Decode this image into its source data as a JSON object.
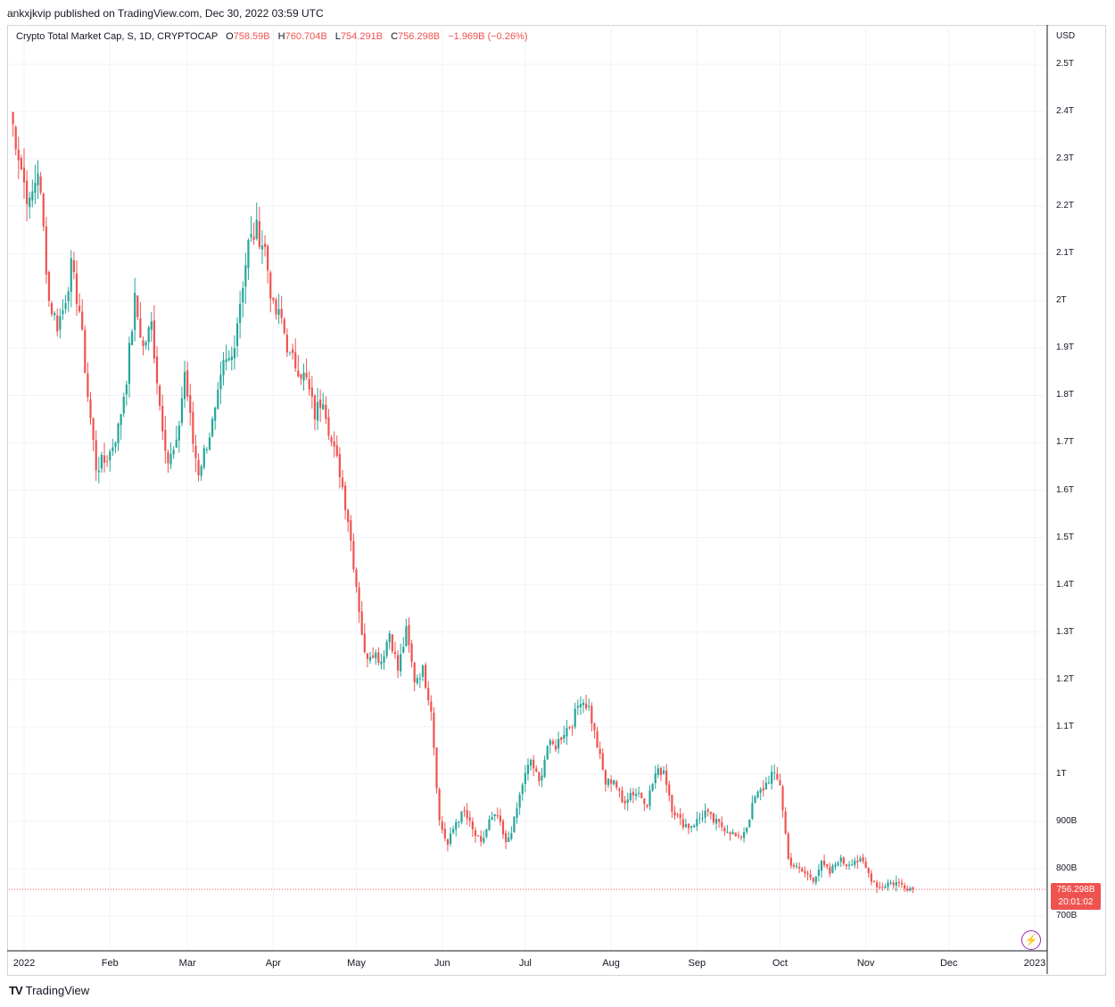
{
  "header": {
    "published_text": "ankxjkvip published on TradingView.com, Dec 30, 2022 03:59 UTC"
  },
  "legend": {
    "symbol_text": "Crypto Total Market Cap, S, 1D, CRYPTOCAP",
    "open_label": "O",
    "open_value": "758.59B",
    "high_label": "H",
    "high_value": "760.704B",
    "low_label": "L",
    "low_value": "754.291B",
    "close_label": "C",
    "close_value": "756.298B",
    "change_text": "−1.969B (−0.26%)"
  },
  "price_scale": {
    "currency": "USD",
    "last_price_label": "756.298B",
    "countdown_label": "20:01:02"
  },
  "footer": {
    "brand_icon": "tv-logo-icon",
    "brand_text": "TradingView"
  },
  "colors": {
    "up": "#26a69a",
    "down": "#ef5350",
    "grid": "#f0f3fa",
    "last_price_line": "#ef5350",
    "accent": "#9c27b0"
  },
  "chart_data": {
    "type": "candlestick",
    "title": "Crypto Total Market Cap",
    "interval": "1D",
    "unit": "USD",
    "ylim": [
      650,
      2550
    ],
    "y_ticks": [
      {
        "value": 700,
        "label": "700B"
      },
      {
        "value": 800,
        "label": "800B"
      },
      {
        "value": 900,
        "label": "900B"
      },
      {
        "value": 1000,
        "label": "1T"
      },
      {
        "value": 1100,
        "label": "1.1T"
      },
      {
        "value": 1200,
        "label": "1.2T"
      },
      {
        "value": 1300,
        "label": "1.3T"
      },
      {
        "value": 1400,
        "label": "1.4T"
      },
      {
        "value": 1500,
        "label": "1.5T"
      },
      {
        "value": 1600,
        "label": "1.6T"
      },
      {
        "value": 1700,
        "label": "1.7T"
      },
      {
        "value": 1800,
        "label": "1.8T"
      },
      {
        "value": 1900,
        "label": "1.9T"
      },
      {
        "value": 2000,
        "label": "2T"
      },
      {
        "value": 2100,
        "label": "2.1T"
      },
      {
        "value": 2200,
        "label": "2.2T"
      },
      {
        "value": 2300,
        "label": "2.3T"
      },
      {
        "value": 2400,
        "label": "2.4T"
      },
      {
        "value": 2500,
        "label": "2.5T"
      }
    ],
    "x_ticks": [
      {
        "day": 0,
        "label": "2022"
      },
      {
        "day": 31,
        "label": "Feb"
      },
      {
        "day": 59,
        "label": "Mar"
      },
      {
        "day": 90,
        "label": "Apr"
      },
      {
        "day": 120,
        "label": "May"
      },
      {
        "day": 151,
        "label": "Jun"
      },
      {
        "day": 181,
        "label": "Jul"
      },
      {
        "day": 212,
        "label": "Aug"
      },
      {
        "day": 243,
        "label": "Sep"
      },
      {
        "day": 273,
        "label": "Oct"
      },
      {
        "day": 304,
        "label": "Nov"
      },
      {
        "day": 334,
        "label": "Dec"
      },
      {
        "day": 365,
        "label": "2023"
      }
    ],
    "last_close": 756.298,
    "close_anchors": [
      [
        -5,
        2400
      ],
      [
        0,
        2250
      ],
      [
        2,
        2200
      ],
      [
        5,
        2280
      ],
      [
        7,
        2150
      ],
      [
        9,
        2000
      ],
      [
        12,
        1950
      ],
      [
        14,
        1980
      ],
      [
        17,
        2070
      ],
      [
        20,
        1980
      ],
      [
        23,
        1800
      ],
      [
        26,
        1650
      ],
      [
        29,
        1660
      ],
      [
        31,
        1680
      ],
      [
        34,
        1730
      ],
      [
        37,
        1840
      ],
      [
        40,
        2000
      ],
      [
        43,
        1900
      ],
      [
        46,
        1950
      ],
      [
        49,
        1780
      ],
      [
        52,
        1660
      ],
      [
        55,
        1690
      ],
      [
        58,
        1850
      ],
      [
        61,
        1700
      ],
      [
        63,
        1640
      ],
      [
        66,
        1700
      ],
      [
        69,
        1760
      ],
      [
        72,
        1860
      ],
      [
        75,
        1880
      ],
      [
        78,
        2000
      ],
      [
        81,
        2120
      ],
      [
        84,
        2150
      ],
      [
        87,
        2110
      ],
      [
        90,
        1980
      ],
      [
        93,
        1960
      ],
      [
        96,
        1880
      ],
      [
        99,
        1860
      ],
      [
        102,
        1830
      ],
      [
        105,
        1760
      ],
      [
        108,
        1800
      ],
      [
        111,
        1700
      ],
      [
        114,
        1640
      ],
      [
        117,
        1540
      ],
      [
        120,
        1400
      ],
      [
        123,
        1250
      ],
      [
        126,
        1260
      ],
      [
        129,
        1240
      ],
      [
        132,
        1300
      ],
      [
        135,
        1220
      ],
      [
        138,
        1300
      ],
      [
        141,
        1200
      ],
      [
        144,
        1220
      ],
      [
        147,
        1140
      ],
      [
        150,
        900
      ],
      [
        153,
        850
      ],
      [
        156,
        900
      ],
      [
        159,
        920
      ],
      [
        162,
        880
      ],
      [
        165,
        850
      ],
      [
        168,
        900
      ],
      [
        171,
        910
      ],
      [
        174,
        850
      ],
      [
        177,
        900
      ],
      [
        180,
        980
      ],
      [
        183,
        1030
      ],
      [
        186,
        980
      ],
      [
        189,
        1060
      ],
      [
        192,
        1060
      ],
      [
        195,
        1090
      ],
      [
        198,
        1110
      ],
      [
        201,
        1160
      ],
      [
        204,
        1140
      ],
      [
        207,
        1060
      ],
      [
        210,
        980
      ],
      [
        213,
        990
      ],
      [
        216,
        940
      ],
      [
        219,
        960
      ],
      [
        222,
        960
      ],
      [
        225,
        940
      ],
      [
        228,
        1000
      ],
      [
        231,
        1010
      ],
      [
        234,
        930
      ],
      [
        237,
        900
      ],
      [
        240,
        890
      ],
      [
        243,
        900
      ],
      [
        246,
        920
      ],
      [
        249,
        900
      ],
      [
        252,
        890
      ],
      [
        255,
        880
      ],
      [
        258,
        860
      ],
      [
        261,
        890
      ],
      [
        264,
        950
      ],
      [
        267,
        970
      ],
      [
        270,
        1000
      ],
      [
        273,
        980
      ],
      [
        276,
        820
      ],
      [
        279,
        800
      ],
      [
        282,
        790
      ],
      [
        285,
        780
      ],
      [
        288,
        810
      ],
      [
        291,
        790
      ],
      [
        294,
        820
      ],
      [
        297,
        810
      ],
      [
        300,
        820
      ],
      [
        303,
        810
      ],
      [
        306,
        780
      ],
      [
        309,
        760
      ],
      [
        312,
        770
      ],
      [
        315,
        770
      ],
      [
        318,
        765
      ],
      [
        321,
        756.298
      ]
    ]
  }
}
